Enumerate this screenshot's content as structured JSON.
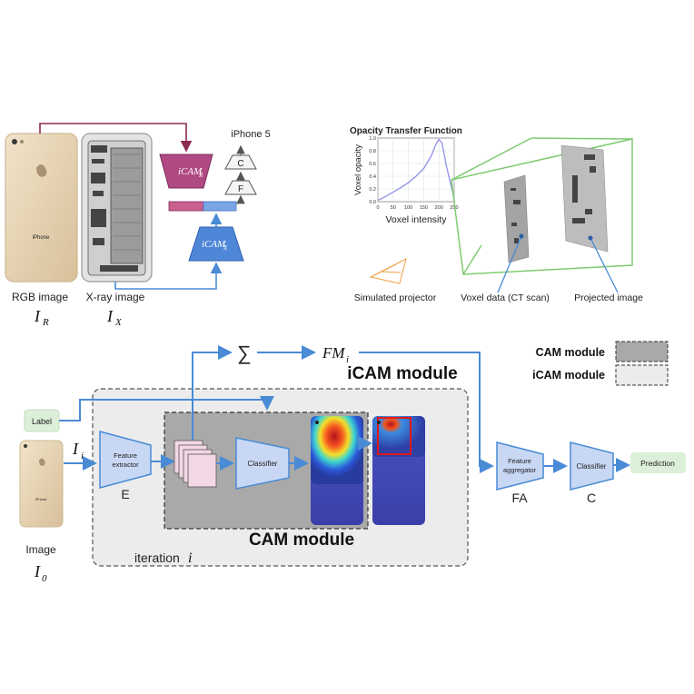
{
  "top_left": {
    "phone_label": "iPhone",
    "rgb_caption": "RGB image",
    "rgb_symbol": "I",
    "rgb_sub": "R",
    "xray_caption": "X-ray image",
    "xray_symbol": "I",
    "xray_sub": "X",
    "icam_r": "iCAM",
    "icam_r_sub": "R",
    "icam_x": "iCAM",
    "icam_x_sub": "X",
    "f_label": "F",
    "c_label": "C",
    "output_label": "iPhone 5"
  },
  "top_right": {
    "title": "Opacity Transfer Function",
    "ylabel": "Voxel opacity",
    "xlabel": "Voxel intensity",
    "yticks": [
      "1.0",
      "0.8",
      "0.6",
      "0.4",
      "0.2",
      "0.0"
    ],
    "xticks": [
      "0",
      "50",
      "100",
      "150",
      "200",
      "250"
    ],
    "projector_label": "Simulated projector",
    "voxel_label": "Voxel data (CT scan)",
    "projected_label": "Projected image",
    "chart_data": {
      "type": "line",
      "x": [
        0,
        25,
        50,
        75,
        100,
        125,
        150,
        175,
        190,
        200,
        210,
        225,
        250
      ],
      "y": [
        0.02,
        0.08,
        0.15,
        0.22,
        0.3,
        0.4,
        0.52,
        0.72,
        0.9,
        0.98,
        0.92,
        0.55,
        0.05
      ],
      "xlim": [
        0,
        250
      ],
      "ylim": [
        0,
        1
      ]
    }
  },
  "bottom": {
    "label_box": "Label",
    "image_caption": "Image",
    "image_symbol": "I",
    "image_sub": "0",
    "input_symbol": "I",
    "input_sub": "i",
    "feature_extractor": [
      "Feature",
      "extractor"
    ],
    "e_label": "E",
    "classifier": "Classifier",
    "sum_symbol": "∑",
    "fm_symbol": "FM",
    "fm_sub": "i",
    "icam_title": "iCAM module",
    "cam_title": "CAM module",
    "iteration_label": "iteration",
    "iteration_symbol": "i",
    "feature_aggregator": [
      "Feature",
      "aggregator"
    ],
    "fa_label": "FA",
    "classifier2": "Classifier",
    "c_label": "C",
    "prediction": "Prediction",
    "legend": [
      {
        "label": "CAM module",
        "color": "#a9a9a9"
      },
      {
        "label": "iCAM module",
        "color": "#ececec"
      }
    ],
    "phone_label": "iPhone"
  },
  "colors": {
    "accent_blue": "#4a8bd6",
    "module_blue": "#c8d8f4",
    "icam_red": "#b04a82",
    "icam_x_blue": "#4f87d8",
    "wire_red": "#8c2a52",
    "green_frame": "#7fca72",
    "label_green": "#dcefd8"
  }
}
